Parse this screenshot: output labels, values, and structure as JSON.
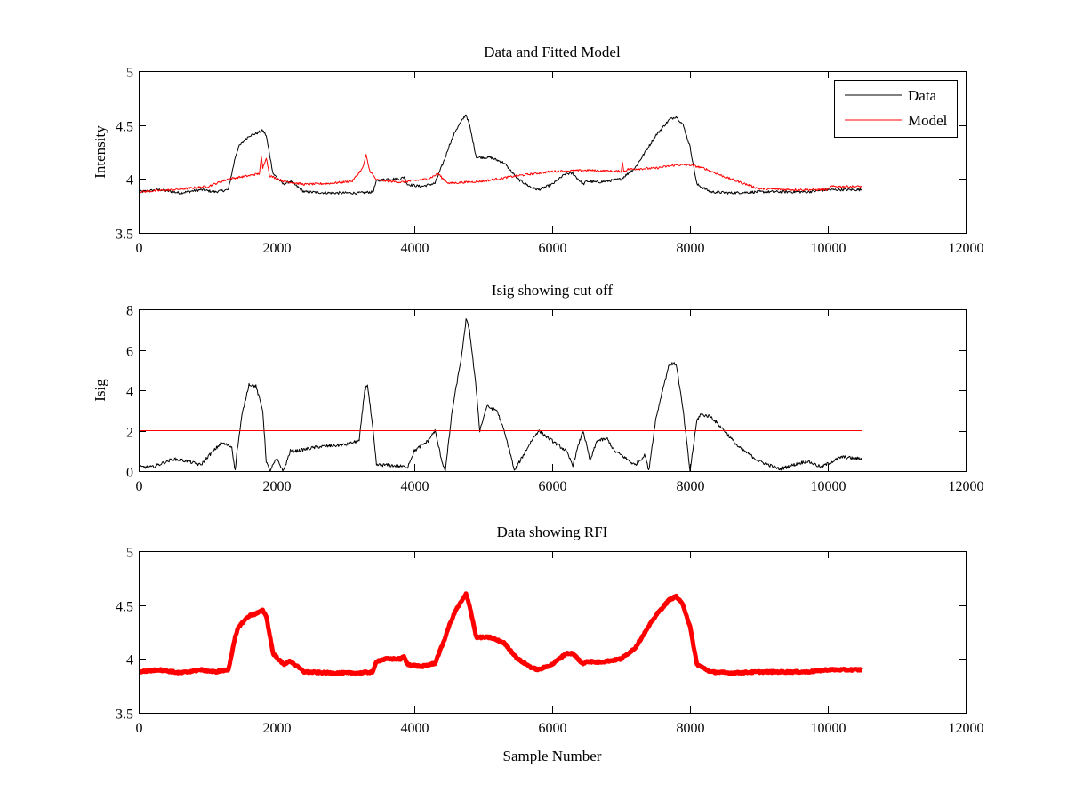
{
  "chart_data": [
    {
      "type": "line",
      "title": "Data and Fitted Model",
      "xlabel": "",
      "ylabel": "Intensity",
      "xlim": [
        0,
        12000
      ],
      "ylim": [
        3.5,
        5
      ],
      "xticks": [
        0,
        2000,
        4000,
        6000,
        8000,
        10000,
        12000
      ],
      "xtick_labels": [
        "0",
        "2000",
        "4000",
        "6000",
        "8000",
        "10000",
        "12000"
      ],
      "yticks": [
        3.5,
        4,
        4.5,
        5
      ],
      "ytick_labels": [
        "3.5",
        "4",
        "4.5",
        "5"
      ],
      "legend": {
        "position": "top-right",
        "entries": [
          "Data",
          "Model"
        ]
      },
      "series": [
        {
          "name": "Data",
          "color": "#000000",
          "line_width": 1,
          "noise": 0.012,
          "x": [
            0,
            300,
            600,
            900,
            1100,
            1300,
            1400,
            1450,
            1600,
            1700,
            1800,
            1850,
            1950,
            2100,
            2200,
            2400,
            2800,
            3200,
            3400,
            3450,
            3600,
            3800,
            3850,
            3900,
            4100,
            4300,
            4450,
            4500,
            4600,
            4700,
            4750,
            4800,
            4900,
            4950,
            5100,
            5300,
            5500,
            5700,
            5800,
            6000,
            6200,
            6300,
            6450,
            6500,
            6650,
            6800,
            7000,
            7200,
            7400,
            7500,
            7700,
            7800,
            7900,
            8000,
            8100,
            8300,
            8600,
            9000,
            9400,
            9700,
            10000,
            10300,
            10500
          ],
          "values": [
            3.88,
            3.9,
            3.87,
            3.9,
            3.88,
            3.9,
            4.2,
            4.3,
            4.4,
            4.42,
            4.45,
            4.4,
            4.05,
            3.95,
            3.98,
            3.88,
            3.87,
            3.87,
            3.88,
            3.98,
            4.0,
            4.0,
            4.02,
            3.95,
            3.93,
            3.96,
            4.2,
            4.3,
            4.45,
            4.55,
            4.6,
            4.5,
            4.2,
            4.2,
            4.2,
            4.15,
            4.0,
            3.92,
            3.9,
            3.95,
            4.05,
            4.05,
            3.95,
            3.98,
            3.97,
            3.98,
            4.0,
            4.1,
            4.3,
            4.4,
            4.55,
            4.58,
            4.5,
            4.3,
            3.95,
            3.88,
            3.87,
            3.88,
            3.88,
            3.88,
            3.9,
            3.9,
            3.9
          ]
        },
        {
          "name": "Model",
          "color": "#ff0000",
          "line_width": 1,
          "noise": 0.01,
          "x": [
            0,
            500,
            1000,
            1300,
            1600,
            1750,
            1780,
            1800,
            1850,
            1900,
            2100,
            2400,
            2800,
            3100,
            3250,
            3300,
            3350,
            3450,
            3800,
            4200,
            4350,
            4400,
            4500,
            5000,
            5500,
            6000,
            6500,
            7000,
            7020,
            7040,
            7100,
            7500,
            7800,
            8000,
            8200,
            8500,
            9000,
            9500,
            10000,
            10050,
            10300,
            10500
          ],
          "values": [
            3.88,
            3.9,
            3.93,
            4.0,
            4.03,
            4.05,
            4.2,
            4.1,
            4.2,
            4.03,
            3.98,
            3.95,
            3.96,
            3.98,
            4.1,
            4.22,
            4.08,
            3.99,
            3.97,
            4.0,
            4.05,
            4.01,
            3.96,
            3.98,
            4.03,
            4.07,
            4.08,
            4.07,
            4.15,
            4.07,
            4.09,
            4.1,
            4.13,
            4.13,
            4.1,
            4.02,
            3.91,
            3.9,
            3.9,
            3.93,
            3.93,
            3.93
          ]
        }
      ]
    },
    {
      "type": "line",
      "title": "Isig showing cut off",
      "xlabel": "",
      "ylabel": "Isig",
      "xlim": [
        0,
        12000
      ],
      "ylim": [
        0,
        8
      ],
      "xticks": [
        0,
        2000,
        4000,
        6000,
        8000,
        10000,
        12000
      ],
      "xtick_labels": [
        "0",
        "2000",
        "4000",
        "6000",
        "8000",
        "10000",
        "12000"
      ],
      "yticks": [
        0,
        2,
        4,
        6,
        8
      ],
      "ytick_labels": [
        "0",
        "2",
        "4",
        "6",
        "8"
      ],
      "series": [
        {
          "name": "Isig",
          "color": "#000000",
          "line_width": 1,
          "noise": 0.08,
          "x": [
            0,
            200,
            500,
            700,
            900,
            1000,
            1200,
            1350,
            1400,
            1420,
            1500,
            1600,
            1700,
            1800,
            1850,
            1900,
            2000,
            2100,
            2200,
            2300,
            2600,
            3000,
            3200,
            3280,
            3320,
            3400,
            3450,
            3600,
            3900,
            4000,
            4200,
            4300,
            4400,
            4450,
            4550,
            4600,
            4700,
            4750,
            4800,
            4900,
            4950,
            5050,
            5200,
            5300,
            5400,
            5450,
            5700,
            5800,
            6000,
            6200,
            6300,
            6400,
            6450,
            6550,
            6650,
            6800,
            6900,
            7000,
            7200,
            7350,
            7400,
            7500,
            7600,
            7700,
            7800,
            7900,
            8000,
            8100,
            8150,
            8300,
            8500,
            8700,
            9000,
            9300,
            9500,
            9700,
            9900,
            10200,
            10500
          ],
          "values": [
            0.2,
            0.2,
            0.6,
            0.5,
            0.3,
            0.7,
            1.4,
            1.2,
            0.0,
            0.8,
            2.8,
            4.3,
            4.2,
            3.0,
            0.5,
            0.0,
            0.6,
            0.0,
            1.0,
            1.0,
            1.2,
            1.3,
            1.5,
            4.0,
            4.3,
            2.0,
            0.3,
            0.3,
            0.2,
            1.0,
            1.5,
            2.0,
            0.5,
            0.0,
            3.0,
            4.0,
            6.0,
            7.5,
            7.0,
            4.0,
            2.0,
            3.2,
            3.0,
            2.0,
            0.8,
            0.0,
            1.5,
            2.0,
            1.5,
            1.0,
            0.3,
            1.5,
            2.0,
            0.5,
            1.5,
            1.6,
            1.0,
            0.8,
            0.3,
            0.8,
            0.0,
            2.5,
            4.0,
            5.3,
            5.3,
            3.0,
            0.0,
            2.5,
            2.8,
            2.7,
            2.0,
            1.2,
            0.5,
            0.1,
            0.3,
            0.5,
            0.2,
            0.7,
            0.6
          ]
        },
        {
          "name": "Cut off",
          "color": "#ff0000",
          "line_width": 1,
          "noise": 0,
          "x": [
            0,
            10500
          ],
          "values": [
            2,
            2
          ]
        }
      ]
    },
    {
      "type": "line",
      "title": "Data showing RFI",
      "xlabel": "Sample Number",
      "ylabel": "",
      "xlim": [
        0,
        12000
      ],
      "ylim": [
        3.5,
        5
      ],
      "xticks": [
        0,
        2000,
        4000,
        6000,
        8000,
        10000,
        12000
      ],
      "xtick_labels": [
        "0",
        "2000",
        "4000",
        "6000",
        "8000",
        "10000",
        "12000"
      ],
      "yticks": [
        3.5,
        4,
        4.5,
        5
      ],
      "ytick_labels": [
        "3.5",
        "4",
        "4.5",
        "5"
      ],
      "series": [
        {
          "name": "RFI",
          "color": "#ff0000",
          "line_width": 5,
          "noise": 0.008,
          "x": [
            0,
            300,
            600,
            900,
            1100,
            1300,
            1400,
            1450,
            1600,
            1700,
            1800,
            1850,
            1950,
            2100,
            2200,
            2400,
            2800,
            3200,
            3400,
            3450,
            3600,
            3800,
            3850,
            3900,
            4100,
            4300,
            4450,
            4500,
            4600,
            4700,
            4750,
            4800,
            4900,
            4950,
            5100,
            5300,
            5500,
            5700,
            5800,
            6000,
            6200,
            6300,
            6450,
            6500,
            6650,
            6800,
            7000,
            7200,
            7400,
            7500,
            7700,
            7800,
            7900,
            8000,
            8100,
            8300,
            8600,
            9000,
            9400,
            9700,
            10000,
            10300,
            10500
          ],
          "values": [
            3.88,
            3.9,
            3.87,
            3.9,
            3.88,
            3.9,
            4.2,
            4.3,
            4.4,
            4.42,
            4.45,
            4.4,
            4.05,
            3.95,
            3.98,
            3.88,
            3.87,
            3.87,
            3.88,
            3.98,
            4.0,
            4.0,
            4.02,
            3.95,
            3.93,
            3.96,
            4.2,
            4.3,
            4.45,
            4.55,
            4.6,
            4.5,
            4.2,
            4.2,
            4.2,
            4.15,
            4.0,
            3.92,
            3.9,
            3.95,
            4.05,
            4.05,
            3.95,
            3.98,
            3.97,
            3.98,
            4.0,
            4.1,
            4.3,
            4.4,
            4.55,
            4.58,
            4.5,
            4.3,
            3.95,
            3.88,
            3.87,
            3.88,
            3.88,
            3.88,
            3.9,
            3.9,
            3.9
          ]
        }
      ]
    }
  ]
}
